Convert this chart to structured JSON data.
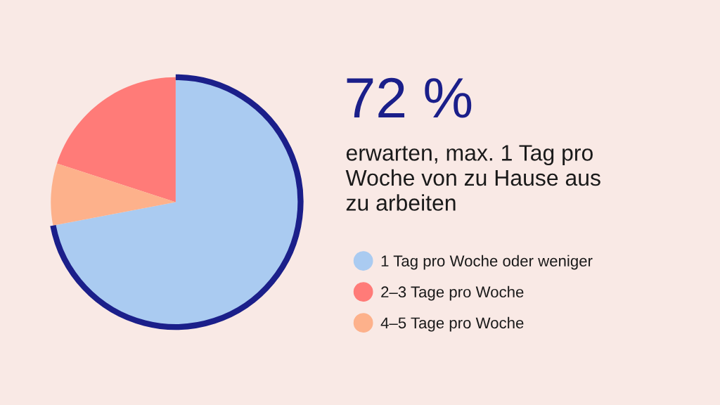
{
  "chart_data": {
    "type": "pie",
    "subtitle": "erwarten, max. 1 Tag pro\nWoche von zu Hause aus\nzu arbeiten",
    "categories": [
      "1 Tag pro Woche oder weniger",
      "2–3 Tage pro Woche",
      "4–5 Tage pro Woche"
    ],
    "values": [
      72,
      20,
      8
    ],
    "colors": [
      "#aacbf1",
      "#ff7b78",
      "#fdb18b"
    ],
    "legend": "right",
    "annotations": [
      {
        "text": "72 %",
        "x": "1 Tag pro Woche oder weniger"
      }
    ]
  }
}
